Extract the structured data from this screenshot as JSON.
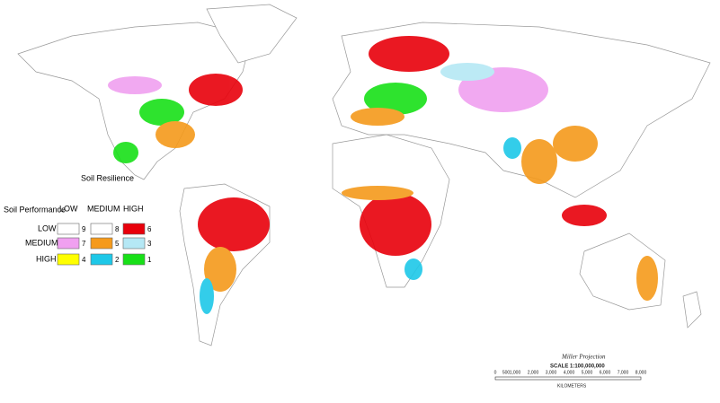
{
  "legend": {
    "title": "Soil Resilience",
    "row_title": "Soil Performance",
    "columns": [
      "LOW",
      "MEDIUM",
      "HIGH"
    ],
    "rows": [
      {
        "label": "LOW",
        "cells": [
          {
            "value": 9,
            "color": "#ffffff"
          },
          {
            "value": 8,
            "color": "#ffffff"
          },
          {
            "value": 6,
            "color": "#e8000b"
          }
        ]
      },
      {
        "label": "MEDIUM",
        "cells": [
          {
            "value": 7,
            "color": "#f0a0f0"
          },
          {
            "value": 5,
            "color": "#f59a1b"
          },
          {
            "value": 3,
            "color": "#b5e8f5"
          }
        ]
      },
      {
        "label": "HIGH",
        "cells": [
          {
            "value": 4,
            "color": "#ffff00"
          },
          {
            "value": 2,
            "color": "#1ec8e8"
          },
          {
            "value": 1,
            "color": "#18e018"
          }
        ]
      }
    ]
  },
  "scale": {
    "projection": "Miller Projection",
    "scale": "SCALE 1:100,000,000",
    "ticks": [
      "0",
      "500",
      "1,000",
      "2,000",
      "3,000",
      "4,000",
      "5,000",
      "6,000",
      "7,000",
      "8,000"
    ],
    "unit": "KILOMETERS"
  }
}
